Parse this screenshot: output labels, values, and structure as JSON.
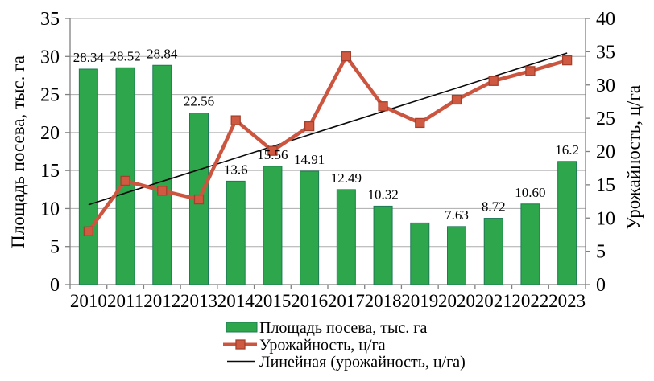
{
  "colors": {
    "bar_fill": "#2EA64B",
    "bar_stroke": "#1F7A55",
    "line": "#CC5540",
    "marker_fill": "#D05A41",
    "marker_stroke": "#A6402C",
    "trend": "#0a0a0a",
    "grid": "#ABABAB",
    "axis": "#7F7F7F",
    "text": "#000000"
  },
  "chart_data": {
    "type": "combo (bar + line + linear trend)",
    "categories": [
      "2010",
      "2011",
      "2012",
      "2013",
      "2014",
      "2015",
      "2016",
      "2017",
      "2018",
      "2019",
      "2020",
      "2021",
      "2022",
      "2023"
    ],
    "series": [
      {
        "name": "Площадь посева, тыс. га",
        "type": "bar",
        "axis": "left",
        "values": [
          28.34,
          28.52,
          28.84,
          22.56,
          13.6,
          15.56,
          14.91,
          12.49,
          10.32,
          8.1,
          7.63,
          8.72,
          10.6,
          16.2
        ],
        "data_labels": [
          "28.34",
          "28.52",
          "28.84",
          "22.56",
          "13.6",
          "15.56",
          "14.91",
          "12.49",
          "10.32",
          "",
          "7.63",
          "8.72",
          "10.60",
          "16.2"
        ]
      },
      {
        "name": "Урожайность, ц/га",
        "type": "line",
        "axis": "right",
        "values": [
          8.0,
          15.6,
          14.1,
          12.8,
          24.7,
          20.1,
          23.8,
          34.3,
          26.8,
          24.3,
          27.8,
          30.6,
          32.1,
          33.7
        ]
      },
      {
        "name": "Линейная (урожайность, ц/га)",
        "type": "trend",
        "axis": "right",
        "values": [
          12.0,
          34.8
        ]
      }
    ],
    "left_axis": {
      "title": "Площадь посева, тыс. га",
      "min": 0,
      "max": 35,
      "step": 5,
      "ticks": [
        "35",
        "30",
        "25",
        "20",
        "15",
        "10",
        "5",
        "0"
      ]
    },
    "right_axis": {
      "title": "Урожайность, ц/га",
      "min": 0,
      "max": 40,
      "step": 5,
      "ticks": [
        "40",
        "35",
        "30",
        "25",
        "20",
        "15",
        "10",
        "5",
        "0"
      ]
    },
    "x_axis": {
      "labels": [
        "2010",
        "2011",
        "2012",
        "2013",
        "2014",
        "2015",
        "2016",
        "2017",
        "2018",
        "2019",
        "2020",
        "2021",
        "2022",
        "2023"
      ]
    },
    "grid": "horizontal",
    "legend": {
      "position": "bottom",
      "items": [
        {
          "label": "Площадь посева, тыс. га",
          "swatch": "bar"
        },
        {
          "label": "Урожайность, ц/га",
          "swatch": "line-marker"
        },
        {
          "label": "Линейная (урожайность, ц/га)",
          "swatch": "line"
        }
      ]
    }
  }
}
